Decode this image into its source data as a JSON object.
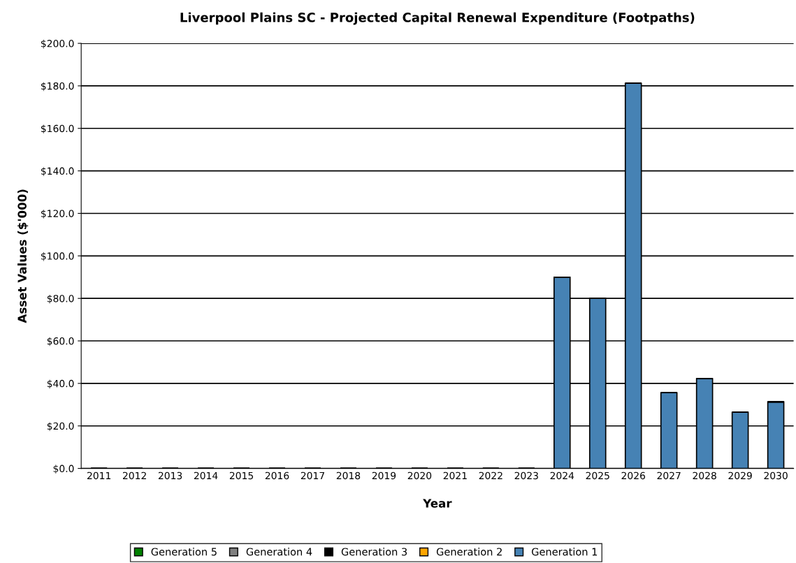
{
  "chart_data": {
    "type": "bar",
    "title": "Liverpool Plains SC - Projected Capital Renewal Expenditure (Footpaths)",
    "xlabel": "Year",
    "ylabel": "Asset Values ($'000)",
    "categories": [
      "2011",
      "2012",
      "2013",
      "2014",
      "2015",
      "2016",
      "2017",
      "2018",
      "2019",
      "2020",
      "2021",
      "2022",
      "2023",
      "2024",
      "2025",
      "2026",
      "2027",
      "2028",
      "2029",
      "2030"
    ],
    "stacked": true,
    "series": [
      {
        "name": "Generation 1",
        "color": "#4682b4",
        "values": [
          0,
          0,
          0,
          0,
          0,
          0,
          0,
          0,
          0,
          0,
          0,
          0,
          0,
          90.0,
          80.0,
          181.2,
          35.6,
          42.2,
          26.4,
          31.3
        ]
      },
      {
        "name": "Generation 2",
        "color": "#ffa500",
        "values": [
          0,
          0,
          0,
          0,
          0,
          0,
          0,
          0,
          0,
          0,
          0,
          0,
          0,
          0,
          0,
          0,
          0,
          0,
          0,
          0
        ]
      },
      {
        "name": "Generation 3",
        "color": "#000000",
        "values": [
          0,
          0,
          0,
          0,
          0,
          0,
          0,
          0,
          0,
          0,
          0,
          0,
          0,
          0,
          0,
          0,
          0,
          0,
          0,
          0
        ]
      },
      {
        "name": "Generation 4",
        "color": "#808080",
        "values": [
          0,
          0,
          0,
          0,
          0,
          0,
          0,
          0,
          0,
          0,
          0,
          0,
          0,
          0,
          0,
          0,
          0,
          0,
          0,
          0
        ]
      },
      {
        "name": "Generation 5",
        "color": "#008000",
        "values": [
          0,
          0,
          0,
          0,
          0,
          0,
          0,
          0,
          0,
          0,
          0,
          0,
          0,
          0,
          0,
          0,
          0,
          0,
          0,
          0
        ]
      }
    ],
    "ylim": [
      0,
      200
    ],
    "yticks": [
      {
        "value": 0,
        "label": "$0.0"
      },
      {
        "value": 20,
        "label": "$20.0"
      },
      {
        "value": 40,
        "label": "$40.0"
      },
      {
        "value": 60,
        "label": "$60.0"
      },
      {
        "value": 80,
        "label": "$80.0"
      },
      {
        "value": 100,
        "label": "$100.0"
      },
      {
        "value": 120,
        "label": "$120.0"
      },
      {
        "value": 140,
        "label": "$140.0"
      },
      {
        "value": 160,
        "label": "$160.0"
      },
      {
        "value": 180,
        "label": "$180.0"
      },
      {
        "value": 200,
        "label": "$200.0"
      }
    ],
    "grid": "y",
    "legend": "bottom"
  }
}
